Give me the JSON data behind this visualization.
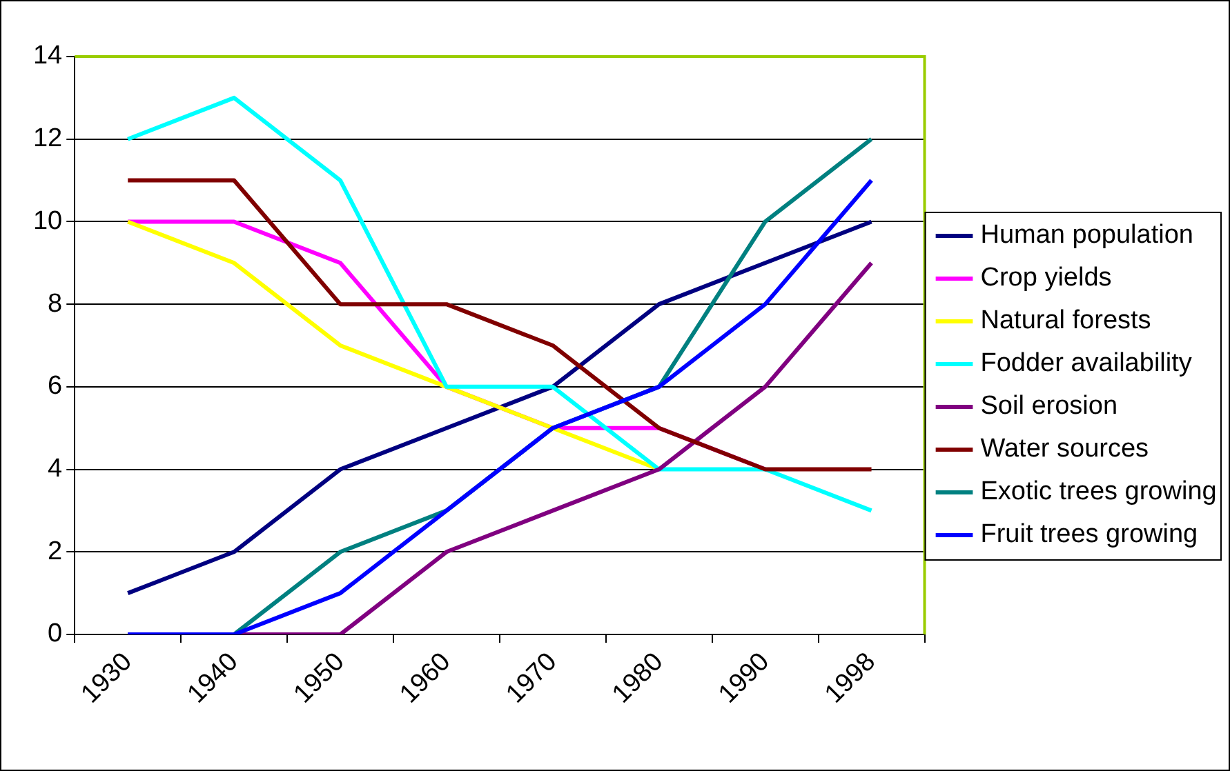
{
  "chart_data": {
    "type": "line",
    "categories": [
      "1930",
      "1940",
      "1950",
      "1960",
      "1970",
      "1980",
      "1990",
      "1998"
    ],
    "series": [
      {
        "name": "Human population",
        "color": "#000080",
        "values": [
          1,
          2,
          4,
          5,
          6,
          8,
          9,
          10
        ]
      },
      {
        "name": "Crop yields",
        "color": "#ff00ff",
        "values": [
          10,
          10,
          9,
          6,
          5,
          5,
          4,
          null
        ]
      },
      {
        "name": "Natural forests",
        "color": "#ffff00",
        "values": [
          10,
          9,
          7,
          6,
          5,
          4,
          null,
          null
        ]
      },
      {
        "name": "Fodder availability",
        "color": "#00ffff",
        "values": [
          12,
          13,
          11,
          6,
          6,
          4,
          4,
          3
        ]
      },
      {
        "name": "Soil erosion",
        "color": "#800080",
        "values": [
          0,
          0,
          0,
          2,
          3,
          4,
          6,
          9
        ]
      },
      {
        "name": "Water sources",
        "color": "#800000",
        "values": [
          11,
          11,
          8,
          8,
          7,
          5,
          4,
          4
        ]
      },
      {
        "name": "Exotic trees growing",
        "color": "#008080",
        "values": [
          0,
          0,
          2,
          3,
          5,
          6,
          10,
          12
        ]
      },
      {
        "name": "Fruit trees growing",
        "color": "#0000ff",
        "values": [
          0,
          0,
          1,
          3,
          5,
          6,
          8,
          11
        ]
      }
    ],
    "ylim": [
      0,
      14
    ],
    "yticks": [
      0,
      2,
      4,
      6,
      8,
      10,
      12,
      14
    ],
    "grid": "y",
    "legend": "right",
    "marker": "none",
    "line_style": "solid"
  }
}
